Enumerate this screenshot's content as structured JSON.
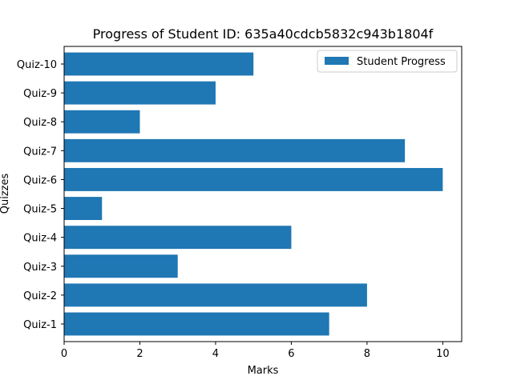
{
  "chart_data": {
    "type": "bar",
    "orientation": "horizontal",
    "title": "Progress of Student ID: 635a40cdcb5832c943b1804f",
    "xlabel": "Marks",
    "ylabel": "Quizzes",
    "categories": [
      "Quiz-1",
      "Quiz-2",
      "Quiz-3",
      "Quiz-4",
      "Quiz-5",
      "Quiz-6",
      "Quiz-7",
      "Quiz-8",
      "Quiz-9",
      "Quiz-10"
    ],
    "series": [
      {
        "name": "Student Progress",
        "values": [
          7,
          8,
          3,
          6,
          1,
          10,
          9,
          2,
          4,
          5
        ],
        "color": "#1f77b4"
      }
    ],
    "xlim": [
      0,
      10.5
    ],
    "xticks": [
      0,
      2,
      4,
      6,
      8,
      10
    ],
    "grid": false,
    "legend_position": "top-right"
  }
}
